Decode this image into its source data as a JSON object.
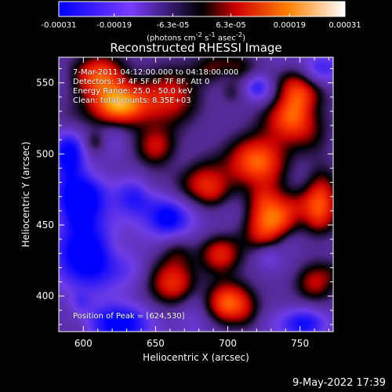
{
  "colorbar": {
    "tick_labels": [
      "-0.00031",
      "-0.00019",
      "-6.3e-05",
      "6.3e-05",
      "0.00019",
      "0.00031"
    ],
    "tick_values": [
      -0.00031,
      -0.00019,
      -6.3e-05,
      6.3e-05,
      0.00019,
      0.00031
    ],
    "range": [
      -0.00031,
      0.00031
    ],
    "units_html": "(photons cm<sup>-2</sup> s<sup>-1</sup> asec<sup>-2</sup>)",
    "colors": [
      "#0000ff",
      "#7a3cff",
      "#000000",
      "#e00000",
      "#ff8000",
      "#ffffff"
    ]
  },
  "chart_data": {
    "type": "heatmap",
    "title": "Reconstructed RHESSI Image",
    "xlabel": "Heliocentric X (arcsec)",
    "ylabel": "Heliocentric Y (arcsec)",
    "xlim": [
      583,
      773
    ],
    "ylim": [
      375,
      568
    ],
    "x_ticks": [
      600,
      650,
      700,
      750
    ],
    "y_ticks": [
      400,
      450,
      500,
      550
    ],
    "peak_xy": [
      624,
      530
    ],
    "hot_spots": [
      {
        "x": 625,
        "y": 535,
        "level": 1.0,
        "sx": 14,
        "sy": 10
      },
      {
        "x": 610,
        "y": 555,
        "level": 0.7,
        "sx": 12,
        "sy": 10
      },
      {
        "x": 730,
        "y": 455,
        "level": 1.0,
        "sx": 14,
        "sy": 12
      },
      {
        "x": 720,
        "y": 495,
        "level": 0.8,
        "sx": 14,
        "sy": 12
      },
      {
        "x": 745,
        "y": 525,
        "level": 0.75,
        "sx": 14,
        "sy": 12
      },
      {
        "x": 680,
        "y": 480,
        "level": 0.6,
        "sx": 14,
        "sy": 12
      },
      {
        "x": 700,
        "y": 395,
        "level": 0.8,
        "sx": 12,
        "sy": 10
      },
      {
        "x": 660,
        "y": 410,
        "level": 0.55,
        "sx": 12,
        "sy": 12
      },
      {
        "x": 695,
        "y": 430,
        "level": 0.6,
        "sx": 10,
        "sy": 10
      },
      {
        "x": 760,
        "y": 410,
        "level": 0.5,
        "sx": 10,
        "sy": 10
      },
      {
        "x": 660,
        "y": 540,
        "level": 0.55,
        "sx": 14,
        "sy": 14
      },
      {
        "x": 700,
        "y": 560,
        "level": 0.6,
        "sx": 14,
        "sy": 8
      },
      {
        "x": 650,
        "y": 505,
        "level": 0.5,
        "sx": 10,
        "sy": 10
      },
      {
        "x": 765,
        "y": 470,
        "level": 0.55,
        "sx": 8,
        "sy": 14
      }
    ],
    "cold_spots": [
      {
        "x": 605,
        "y": 430,
        "level": -1.0,
        "sx": 18,
        "sy": 18
      },
      {
        "x": 595,
        "y": 470,
        "level": -0.7,
        "sx": 12,
        "sy": 12
      },
      {
        "x": 590,
        "y": 500,
        "level": -0.8,
        "sx": 8,
        "sy": 12
      },
      {
        "x": 625,
        "y": 380,
        "level": -0.8,
        "sx": 16,
        "sy": 10
      },
      {
        "x": 660,
        "y": 455,
        "level": -0.6,
        "sx": 14,
        "sy": 12
      },
      {
        "x": 755,
        "y": 380,
        "level": -0.7,
        "sx": 14,
        "sy": 8
      },
      {
        "x": 765,
        "y": 560,
        "level": -0.5,
        "sx": 10,
        "sy": 8
      },
      {
        "x": 635,
        "y": 470,
        "level": -0.5,
        "sx": 10,
        "sy": 10
      }
    ]
  },
  "info": {
    "line1": "7-Mar-2011 04:12:00.000 to 04:18:00.000",
    "line2": "Detectors: 3F 4F 5F 6F 7F 8F, Att 0",
    "line3": "Energy Range: 25.0 - 50.0 keV",
    "line4": "Clean: total counts: 8.35E+03"
  },
  "peak_label": "Position of Peak = [624,530]",
  "timestamp": "9-May-2022 17:39"
}
